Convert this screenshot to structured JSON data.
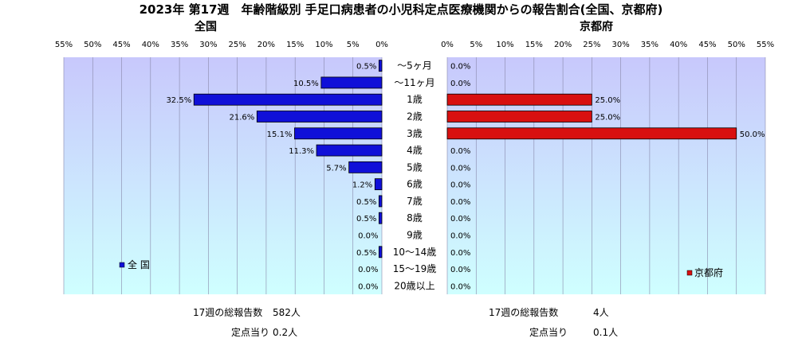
{
  "header": {
    "title": "2023年 第17週　年齢階級別 手足口病患者の小児科定点医療機関からの報告割合(全国、京都府)",
    "left_subtitle": "全国",
    "right_subtitle": "京都府"
  },
  "colors": {
    "national_bar": "#1010d8",
    "kyoto_bar": "#d81010",
    "plot_top": "#c8c8fc",
    "plot_bottom": "#cfffff"
  },
  "chart_data": [
    {
      "type": "bar",
      "orientation": "horizontal",
      "direction": "right-to-left",
      "title": "全国",
      "categories": [
        "～5ヶ月",
        "～11ヶ月",
        "1歳",
        "2歳",
        "3歳",
        "4歳",
        "5歳",
        "6歳",
        "7歳",
        "8歳",
        "9歳",
        "10～14歳",
        "15～19歳",
        "20歳以上"
      ],
      "series": [
        {
          "name": "全 国",
          "values": [
            0.5,
            10.5,
            32.5,
            21.6,
            15.1,
            11.3,
            5.7,
            1.2,
            0.5,
            0.5,
            0.0,
            0.5,
            0.0,
            0.0
          ]
        }
      ],
      "data_labels": [
        "0.5%",
        "10.5%",
        "32.5%",
        "21.6%",
        "15.1%",
        "11.3%",
        "5.7%",
        "1.2%",
        "0.5%",
        "0.5%",
        "0.0%",
        "0.5%",
        "0.0%",
        "0.0%"
      ],
      "xlim": [
        0,
        55
      ],
      "xticks": [
        "55%",
        "50%",
        "45%",
        "40%",
        "35%",
        "30%",
        "25%",
        "20%",
        "15%",
        "10%",
        "5%",
        "0%"
      ],
      "grid": true,
      "legend": "bottom-left"
    },
    {
      "type": "bar",
      "orientation": "horizontal",
      "direction": "left-to-right",
      "title": "京都府",
      "categories": [
        "～5ヶ月",
        "～11ヶ月",
        "1歳",
        "2歳",
        "3歳",
        "4歳",
        "5歳",
        "6歳",
        "7歳",
        "8歳",
        "9歳",
        "10～14歳",
        "15～19歳",
        "20歳以上"
      ],
      "series": [
        {
          "name": "京都府",
          "values": [
            0.0,
            0.0,
            25.0,
            25.0,
            50.0,
            0.0,
            0.0,
            0.0,
            0.0,
            0.0,
            0.0,
            0.0,
            0.0,
            0.0
          ]
        }
      ],
      "data_labels": [
        "0.0%",
        "0.0%",
        "25.0%",
        "25.0%",
        "50.0%",
        "0.0%",
        "0.0%",
        "0.0%",
        "0.0%",
        "0.0%",
        "0.0%",
        "0.0%",
        "0.0%",
        "0.0%"
      ],
      "xlim": [
        0,
        55
      ],
      "xticks": [
        "0%",
        "5%",
        "10%",
        "15%",
        "20%",
        "25%",
        "30%",
        "35%",
        "40%",
        "45%",
        "50%",
        "55%"
      ],
      "grid": true,
      "legend": "bottom-right"
    }
  ],
  "footer": {
    "left_total_label": "17週の総報告数",
    "left_total_value": "582人",
    "left_per_label": "定点当り",
    "left_per_value": "0.2人",
    "right_total_label": "17週の総報告数",
    "right_total_value": "4人",
    "right_per_label": "定点当り",
    "right_per_value": "0.1人"
  }
}
